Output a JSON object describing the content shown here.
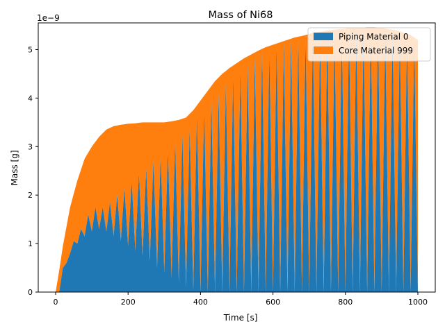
{
  "chart_data": {
    "type": "area",
    "stacked": true,
    "title": "Mass of Ni68",
    "xlabel": "Time [s]",
    "ylabel": "Mass [g]",
    "y_offset_text": "1e−9",
    "y_scale_exponent": -9,
    "xlim": [
      -48,
      1048
    ],
    "ylim": [
      0,
      5.55
    ],
    "x_ticks": [
      0,
      200,
      400,
      600,
      800,
      1000
    ],
    "x_tick_labels": [
      "0",
      "200",
      "400",
      "600",
      "800",
      "1000"
    ],
    "y_ticks": [
      0,
      1,
      2,
      3,
      4,
      5
    ],
    "y_tick_labels": [
      "0",
      "1",
      "2",
      "3",
      "4",
      "5"
    ],
    "grid": false,
    "legend_position": "top-right",
    "x_range": [
      0,
      1000
    ],
    "oscillation_period_s": 20,
    "series": [
      {
        "name": "Piping Material 0",
        "color": "#1f77b4",
        "peak_x": [
          0,
          10,
          30,
          50,
          70,
          90,
          110,
          130,
          150,
          170,
          190,
          210,
          230,
          250,
          270,
          290,
          310,
          330,
          350,
          370,
          390,
          410,
          430,
          450,
          470,
          490,
          510,
          530,
          550,
          570,
          590,
          610,
          630,
          650,
          670,
          690,
          710,
          730,
          750,
          770,
          790,
          810,
          830,
          850,
          870,
          890,
          910,
          930,
          950,
          970,
          990,
          1000
        ],
        "peak_y": [
          0,
          0.0,
          0.6,
          1.05,
          1.3,
          1.6,
          1.75,
          1.75,
          1.85,
          2.0,
          2.15,
          2.3,
          2.45,
          2.55,
          2.7,
          2.8,
          2.95,
          3.1,
          3.25,
          3.35,
          3.65,
          3.8,
          3.95,
          4.1,
          4.3,
          4.45,
          4.6,
          4.7,
          4.85,
          4.95,
          5.0,
          5.1,
          5.15,
          5.2,
          5.25,
          5.3,
          5.35,
          5.35,
          5.4,
          5.4,
          5.4,
          5.45,
          5.45,
          5.45,
          5.45,
          5.45,
          5.4,
          5.4,
          5.35,
          5.3,
          5.25,
          0.0
        ],
        "trough_x": [
          20,
          40,
          60,
          80,
          100,
          120,
          140,
          160,
          180,
          200,
          220,
          240,
          260,
          280,
          300,
          320,
          340,
          360,
          380,
          400,
          420,
          440,
          460,
          480,
          500,
          520,
          540,
          560,
          580,
          600,
          620,
          640,
          660,
          680,
          700,
          720,
          740,
          760,
          780,
          800,
          820,
          840,
          860,
          880,
          900,
          920,
          940,
          960,
          980
        ],
        "trough_y": [
          0.5,
          0.8,
          1.0,
          1.15,
          1.25,
          1.3,
          1.25,
          1.15,
          1.05,
          0.95,
          0.85,
          0.75,
          0.65,
          0.5,
          0.4,
          0.3,
          0.2,
          0.1,
          0.05,
          0.0,
          0.0,
          0.0,
          0.0,
          0.0,
          0.0,
          0.0,
          0.0,
          0.0,
          0.0,
          0.0,
          0.0,
          0.0,
          0.0,
          0.0,
          0.0,
          0.0,
          0.0,
          0.0,
          0.0,
          0.0,
          0.0,
          0.0,
          0.0,
          0.0,
          0.0,
          0.0,
          0.0,
          0.0,
          0.0
        ]
      },
      {
        "name": "Core Material 999",
        "color": "#ff7f0e",
        "total_x": [
          0,
          10,
          20,
          40,
          60,
          80,
          100,
          120,
          140,
          160,
          180,
          200,
          220,
          240,
          260,
          280,
          300,
          320,
          340,
          360,
          380,
          400,
          420,
          440,
          460,
          480,
          500,
          520,
          540,
          560,
          580,
          600,
          620,
          640,
          660,
          680,
          700,
          720,
          740,
          760,
          780,
          800,
          820,
          840,
          860,
          880,
          900,
          920,
          940,
          960,
          980,
          1000
        ],
        "total_y": [
          0,
          0.45,
          0.95,
          1.75,
          2.3,
          2.75,
          3.0,
          3.2,
          3.35,
          3.42,
          3.45,
          3.47,
          3.48,
          3.5,
          3.5,
          3.5,
          3.5,
          3.52,
          3.55,
          3.6,
          3.75,
          3.95,
          4.15,
          4.35,
          4.5,
          4.62,
          4.72,
          4.82,
          4.9,
          4.98,
          5.05,
          5.1,
          5.15,
          5.2,
          5.25,
          5.28,
          5.32,
          5.35,
          5.38,
          5.4,
          5.42,
          5.43,
          5.45,
          5.45,
          5.46,
          5.46,
          5.45,
          5.42,
          5.4,
          5.35,
          5.3,
          5.2
        ]
      }
    ]
  }
}
